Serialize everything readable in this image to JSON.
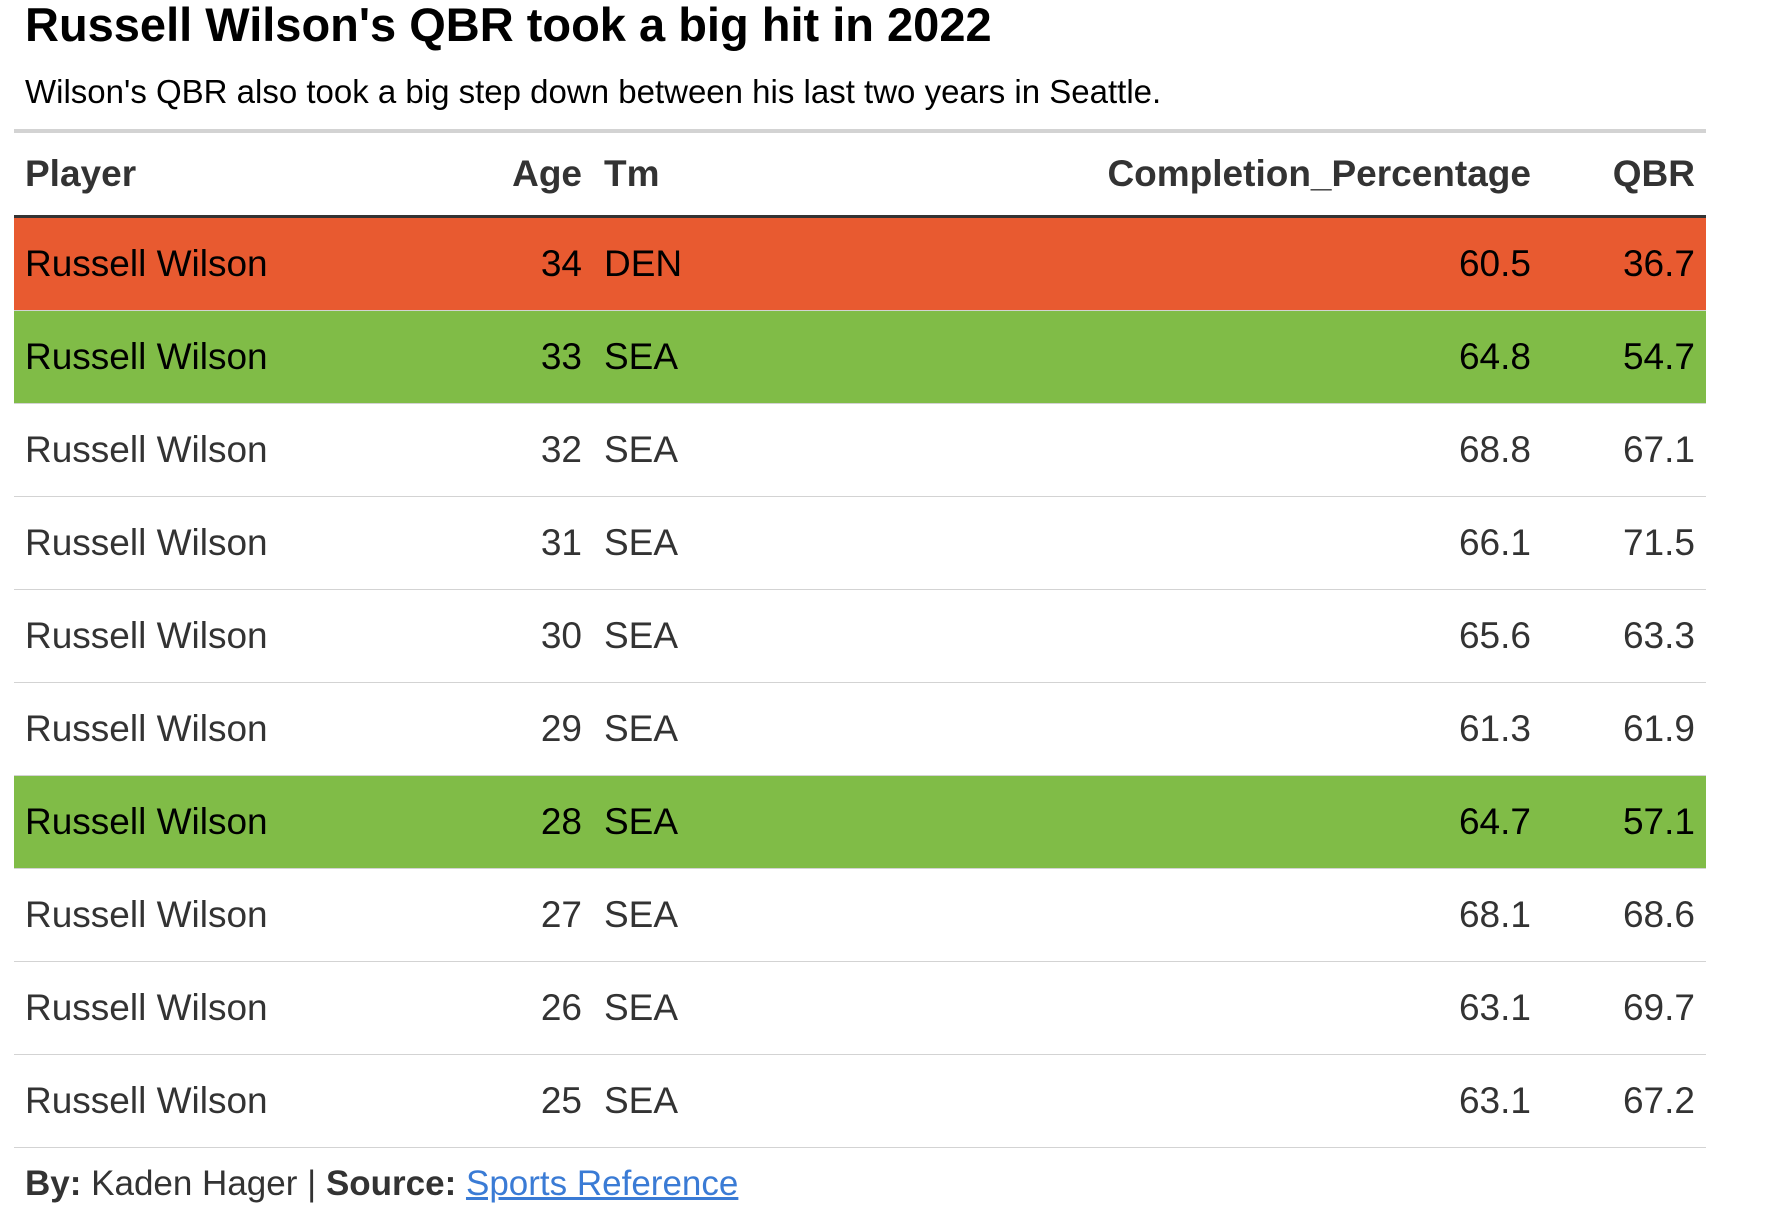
{
  "title": "Russell Wilson's QBR took a big hit in 2022",
  "subtitle": "Wilson's QBR also took a big step down between his last two years in Seattle.",
  "colors": {
    "highlight_red": "#e85a30",
    "highlight_green": "#80bc47",
    "link": "#3a7bd5"
  },
  "chart_data": {
    "type": "table",
    "columns": [
      "Player",
      "Age",
      "Tm",
      "Completion_Percentage",
      "QBR"
    ],
    "rows": [
      {
        "Player": "Russell Wilson",
        "Age": "34",
        "Tm": "DEN",
        "Completion_Percentage": "60.5",
        "QBR": "36.7",
        "highlight": "red"
      },
      {
        "Player": "Russell Wilson",
        "Age": "33",
        "Tm": "SEA",
        "Completion_Percentage": "64.8",
        "QBR": "54.7",
        "highlight": "green"
      },
      {
        "Player": "Russell Wilson",
        "Age": "32",
        "Tm": "SEA",
        "Completion_Percentage": "68.8",
        "QBR": "67.1",
        "highlight": "none"
      },
      {
        "Player": "Russell Wilson",
        "Age": "31",
        "Tm": "SEA",
        "Completion_Percentage": "66.1",
        "QBR": "71.5",
        "highlight": "none"
      },
      {
        "Player": "Russell Wilson",
        "Age": "30",
        "Tm": "SEA",
        "Completion_Percentage": "65.6",
        "QBR": "63.3",
        "highlight": "none"
      },
      {
        "Player": "Russell Wilson",
        "Age": "29",
        "Tm": "SEA",
        "Completion_Percentage": "61.3",
        "QBR": "61.9",
        "highlight": "none"
      },
      {
        "Player": "Russell Wilson",
        "Age": "28",
        "Tm": "SEA",
        "Completion_Percentage": "64.7",
        "QBR": "57.1",
        "highlight": "green"
      },
      {
        "Player": "Russell Wilson",
        "Age": "27",
        "Tm": "SEA",
        "Completion_Percentage": "68.1",
        "QBR": "68.6",
        "highlight": "none"
      },
      {
        "Player": "Russell Wilson",
        "Age": "26",
        "Tm": "SEA",
        "Completion_Percentage": "63.1",
        "QBR": "69.7",
        "highlight": "none"
      },
      {
        "Player": "Russell Wilson",
        "Age": "25",
        "Tm": "SEA",
        "Completion_Percentage": "63.1",
        "QBR": "67.2",
        "highlight": "none"
      }
    ]
  },
  "footer": {
    "by_label": "By:",
    "author": " Kaden Hager | ",
    "source_label": "Source:",
    "source_link": "Sports Reference"
  }
}
